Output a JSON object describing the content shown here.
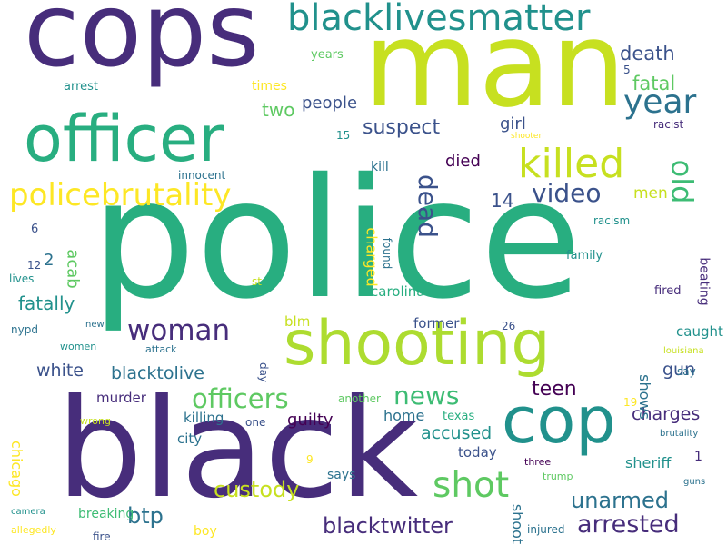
{
  "palette": {
    "dark_purple": "#472d7b",
    "indigo": "#3b528b",
    "blue": "#2c728e",
    "teal": "#21918c",
    "sea_green": "#28ae80",
    "green": "#3dbc74",
    "light_green": "#5ec962",
    "lime": "#addc30",
    "yellow_green": "#c7e020",
    "yellow": "#fde725",
    "deep_purple": "#440154"
  },
  "words": [
    {
      "text": "police",
      "color": "sea_green"
    },
    {
      "text": "black",
      "color": "dark_purple"
    },
    {
      "text": "man",
      "color": "yellow_green"
    },
    {
      "text": "cops",
      "color": "dark_purple"
    },
    {
      "text": "shooting",
      "color": "lime"
    },
    {
      "text": "officer",
      "color": "sea_green"
    },
    {
      "text": "cop",
      "color": "teal"
    },
    {
      "text": "blacklivesmatter",
      "color": "teal"
    },
    {
      "text": "policebrutality",
      "color": "yellow"
    },
    {
      "text": "killed",
      "color": "yellow_green"
    },
    {
      "text": "year",
      "color": "blue"
    },
    {
      "text": "woman",
      "color": "dark_purple"
    },
    {
      "text": "shot",
      "color": "light_green"
    },
    {
      "text": "officers",
      "color": "light_green"
    },
    {
      "text": "news",
      "color": "green"
    },
    {
      "text": "video",
      "color": "indigo"
    },
    {
      "text": "old",
      "color": "green"
    },
    {
      "text": "arrested",
      "color": "dark_purple"
    },
    {
      "text": "blacktwitter",
      "color": "dark_purple"
    },
    {
      "text": "unarmed",
      "color": "blue"
    },
    {
      "text": "btp",
      "color": "blue"
    },
    {
      "text": "custody",
      "color": "yellow_green"
    },
    {
      "text": "suspect",
      "color": "indigo"
    },
    {
      "text": "death",
      "color": "indigo"
    },
    {
      "text": "fatal",
      "color": "light_green"
    },
    {
      "text": "dead",
      "color": "indigo"
    },
    {
      "text": "teen",
      "color": "deep_purple"
    },
    {
      "text": "blacktolive",
      "color": "blue"
    },
    {
      "text": "fatally",
      "color": "teal"
    },
    {
      "text": "white",
      "color": "indigo"
    },
    {
      "text": "gun",
      "color": "indigo"
    },
    {
      "text": "charges",
      "color": "dark_purple"
    },
    {
      "text": "accused",
      "color": "teal"
    },
    {
      "text": "guilty",
      "color": "deep_purple"
    },
    {
      "text": "people",
      "color": "indigo"
    },
    {
      "text": "two",
      "color": "light_green"
    },
    {
      "text": "14",
      "color": "indigo"
    },
    {
      "text": "died",
      "color": "deep_purple"
    },
    {
      "text": "acab",
      "color": "light_green"
    },
    {
      "text": "girl",
      "color": "indigo"
    },
    {
      "text": "men",
      "color": "yellow_green"
    },
    {
      "text": "2",
      "color": "blue"
    },
    {
      "text": "home",
      "color": "blue"
    },
    {
      "text": "sheriff",
      "color": "teal"
    },
    {
      "text": "shows",
      "color": "blue"
    },
    {
      "text": "shoot",
      "color": "blue"
    },
    {
      "text": "charged",
      "color": "yellow"
    },
    {
      "text": "carolina",
      "color": "sea_green"
    },
    {
      "text": "former",
      "color": "indigo"
    },
    {
      "text": "caught",
      "color": "teal"
    },
    {
      "text": "murder",
      "color": "dark_purple"
    },
    {
      "text": "killing",
      "color": "blue"
    },
    {
      "text": "city",
      "color": "blue"
    },
    {
      "text": "blm",
      "color": "yellow_green"
    },
    {
      "text": "today",
      "color": "indigo"
    },
    {
      "text": "says",
      "color": "blue"
    },
    {
      "text": "chicago",
      "color": "yellow"
    },
    {
      "text": "breaking",
      "color": "green"
    },
    {
      "text": "boy",
      "color": "yellow"
    },
    {
      "text": "beating",
      "color": "dark_purple"
    },
    {
      "text": "texas",
      "color": "sea_green"
    },
    {
      "text": "kill",
      "color": "blue"
    },
    {
      "text": "times",
      "color": "yellow"
    },
    {
      "text": "arrest",
      "color": "teal"
    },
    {
      "text": "years",
      "color": "light_green"
    },
    {
      "text": "fired",
      "color": "dark_purple"
    },
    {
      "text": "family",
      "color": "teal"
    },
    {
      "text": "racism",
      "color": "teal"
    },
    {
      "text": "racist",
      "color": "dark_purple"
    },
    {
      "text": "innocent",
      "color": "blue"
    },
    {
      "text": "found",
      "color": "blue"
    },
    {
      "text": "day",
      "color": "indigo"
    },
    {
      "text": "another",
      "color": "light_green"
    },
    {
      "text": "one",
      "color": "indigo"
    },
    {
      "text": "wrong",
      "color": "yellow_green"
    },
    {
      "text": "women",
      "color": "teal"
    },
    {
      "text": "attack",
      "color": "blue"
    },
    {
      "text": "nypd",
      "color": "blue"
    },
    {
      "text": "lives",
      "color": "teal"
    },
    {
      "text": "st",
      "color": "yellow_green"
    },
    {
      "text": "new",
      "color": "blue"
    },
    {
      "text": "camera",
      "color": "teal"
    },
    {
      "text": "allegedly",
      "color": "yellow"
    },
    {
      "text": "fire",
      "color": "indigo"
    },
    {
      "text": "injured",
      "color": "blue"
    },
    {
      "text": "trump",
      "color": "light_green"
    },
    {
      "text": "three",
      "color": "deep_purple"
    },
    {
      "text": "guns",
      "color": "blue"
    },
    {
      "text": "brutality",
      "color": "blue"
    },
    {
      "text": "louisiana",
      "color": "yellow_green"
    },
    {
      "text": "say",
      "color": "blue"
    },
    {
      "text": "shooter",
      "color": "yellow"
    },
    {
      "text": "5",
      "color": "indigo"
    },
    {
      "text": "15",
      "color": "teal"
    },
    {
      "text": "6",
      "color": "indigo"
    },
    {
      "text": "12",
      "color": "indigo"
    },
    {
      "text": "1",
      "color": "dark_purple"
    },
    {
      "text": "19",
      "color": "yellow"
    },
    {
      "text": "26",
      "color": "indigo"
    },
    {
      "text": "9",
      "color": "yellow"
    }
  ]
}
